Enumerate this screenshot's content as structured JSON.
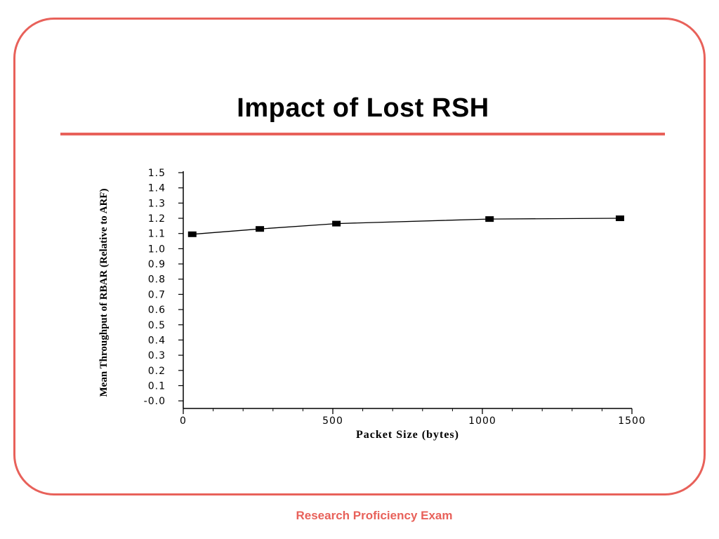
{
  "slide": {
    "title": "Impact of Lost RSH",
    "footer": "Research Proficiency Exam",
    "accent_color": "#e8615a"
  },
  "chart_data": {
    "type": "line",
    "title": "",
    "xlabel": "Packet Size (bytes)",
    "ylabel": "Mean Throughput of RBAR (Relative to ARF)",
    "xlim": [
      0,
      1500
    ],
    "ylim": [
      -0.05,
      1.5
    ],
    "x_ticks": [
      0,
      500,
      1000,
      1500
    ],
    "x_tick_labels": [
      "0",
      "500",
      "1000",
      "1500"
    ],
    "x_minor_step": 100,
    "y_ticks": [
      1.5,
      1.4,
      1.3,
      1.2,
      1.1,
      1.0,
      0.9,
      0.8,
      0.7,
      0.6,
      0.5,
      0.4,
      0.3,
      0.2,
      0.1,
      -0.0
    ],
    "y_tick_labels": [
      "1.5",
      "1.4",
      "1.3",
      "1.2",
      "1.1",
      "1.0",
      "0.9",
      "0.8",
      "0.7",
      "0.6",
      "0.5",
      "0.4",
      "0.3",
      "0.2",
      "0.1",
      "-0.0"
    ],
    "grid": false,
    "legend": "none",
    "series": [
      {
        "x": [
          30,
          256,
          512,
          1024,
          1460
        ],
        "values": [
          1.095,
          1.13,
          1.165,
          1.195,
          1.2
        ],
        "color": "#000000",
        "marker": "square"
      }
    ]
  }
}
